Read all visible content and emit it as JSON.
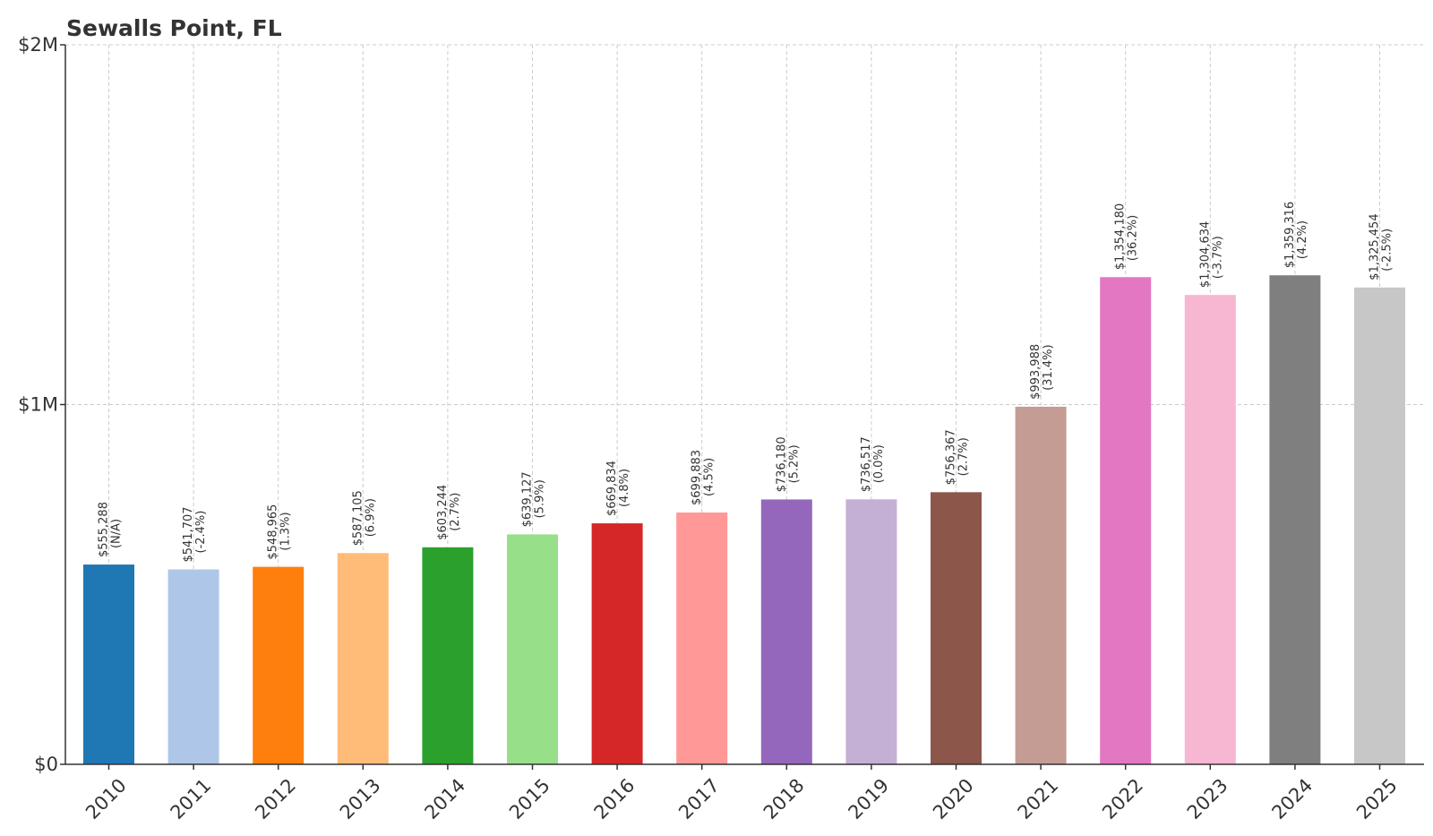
{
  "chart_data": {
    "type": "bar",
    "title": "Sewalls Point, FL",
    "xlabel": "",
    "ylabel": "",
    "ylim": [
      0,
      2000000
    ],
    "yticks": [
      {
        "value": 0,
        "label": "$0"
      },
      {
        "value": 1000000,
        "label": "$1M"
      },
      {
        "value": 2000000,
        "label": "$2M"
      }
    ],
    "grid": true,
    "categories": [
      "2010",
      "2011",
      "2012",
      "2013",
      "2014",
      "2015",
      "2016",
      "2017",
      "2018",
      "2019",
      "2020",
      "2021",
      "2022",
      "2023",
      "2024",
      "2025"
    ],
    "values": [
      555288,
      541707,
      548965,
      587105,
      603244,
      639127,
      669834,
      699883,
      736180,
      736517,
      756367,
      993988,
      1354180,
      1304634,
      1359316,
      1325454
    ],
    "value_labels": [
      "$555,288",
      "$541,707",
      "$548,965",
      "$587,105",
      "$603,244",
      "$639,127",
      "$669,834",
      "$699,883",
      "$736,180",
      "$736,517",
      "$756,367",
      "$993,988",
      "$1,354,180",
      "$1,304,634",
      "$1,359,316",
      "$1,325,454"
    ],
    "change_labels": [
      "(N/A)",
      "(-2.4%)",
      "(1.3%)",
      "(6.9%)",
      "(2.7%)",
      "(5.9%)",
      "(4.8%)",
      "(4.5%)",
      "(5.2%)",
      "(0.0%)",
      "(2.7%)",
      "(31.4%)",
      "(36.2%)",
      "(-3.7%)",
      "(4.2%)",
      "(-2.5%)"
    ],
    "colors": [
      "#1f77b4",
      "#aec7e8",
      "#ff7f0e",
      "#ffbb78",
      "#2ca02c",
      "#98df8a",
      "#d62728",
      "#ff9896",
      "#9467bd",
      "#c5b0d5",
      "#8c564b",
      "#c49c94",
      "#e377c2",
      "#f7b6d2",
      "#7f7f7f",
      "#c7c7c7"
    ]
  }
}
